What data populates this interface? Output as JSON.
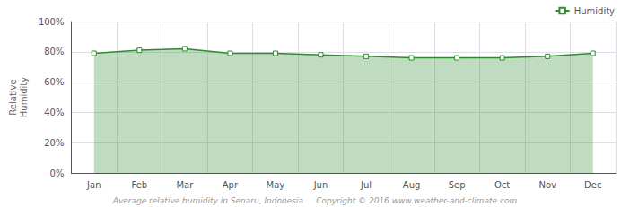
{
  "chart_data": {
    "type": "area",
    "ylabel": "Relative\nHumidity",
    "annotations": [
      "Average relative humidity in Senaru, Indonesia     Copyright © 2016 www.weather-and-climate.com"
    ],
    "categories": [
      "Jan",
      "Feb",
      "Mar",
      "Apr",
      "May",
      "Jun",
      "Jul",
      "Aug",
      "Sep",
      "Oct",
      "Nov",
      "Dec"
    ],
    "series": [
      {
        "name": "Humidity",
        "color": "#2e8b2e",
        "values": [
          79,
          81,
          82,
          79,
          79,
          78,
          77,
          76,
          76,
          76,
          77,
          79
        ]
      }
    ],
    "ylim": [
      0,
      100
    ],
    "yticks": [
      {
        "value": 0,
        "label": "0%"
      },
      {
        "value": 20,
        "label": "20%"
      },
      {
        "value": 40,
        "label": "40%"
      },
      {
        "value": 60,
        "label": "60%"
      },
      {
        "value": 80,
        "label": "80%"
      },
      {
        "value": 100,
        "label": "100%"
      }
    ],
    "grid": true,
    "legend": "top-right",
    "marker": "square"
  }
}
